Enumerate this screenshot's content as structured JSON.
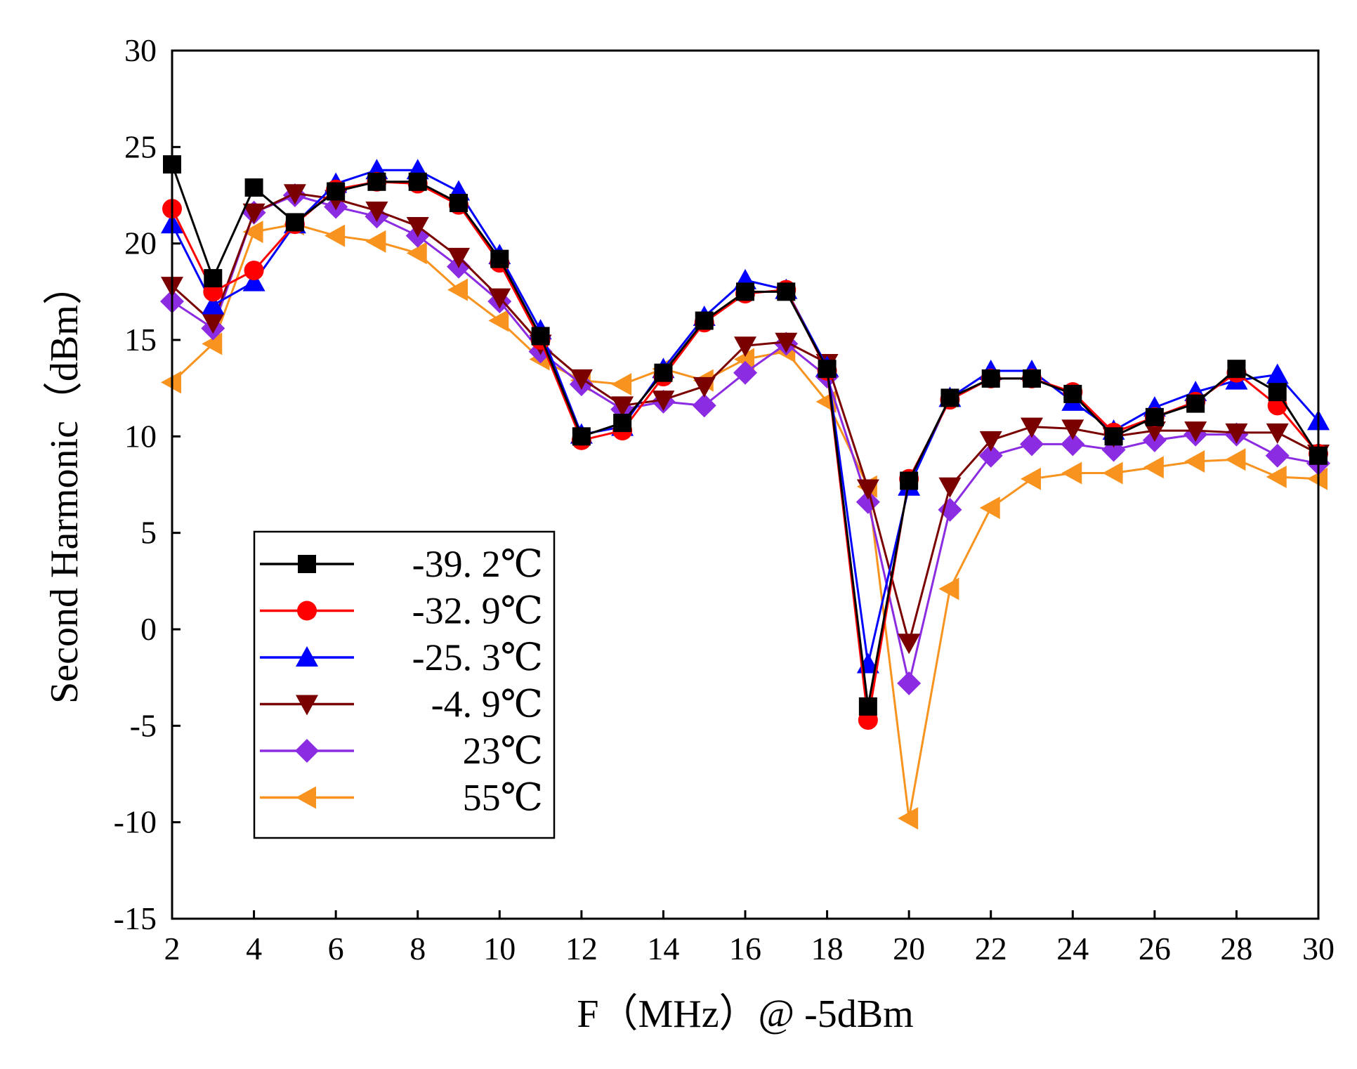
{
  "chart_data": {
    "type": "line",
    "xlabel": "F（MHz）@ -5dBm",
    "ylabel": "Second Harmonic（dBm）",
    "xlim": [
      2,
      30
    ],
    "ylim": [
      -15,
      30
    ],
    "xticks": [
      2,
      4,
      6,
      8,
      10,
      12,
      14,
      16,
      18,
      20,
      22,
      24,
      26,
      28,
      30
    ],
    "yticks": [
      30,
      25,
      20,
      15,
      10,
      5,
      0,
      -5,
      -10,
      -15
    ],
    "grid": false,
    "legend_position": "lower-left",
    "x": [
      2,
      3,
      4,
      5,
      6,
      7,
      8,
      9,
      10,
      11,
      12,
      13,
      14,
      15,
      16,
      17,
      18,
      19,
      20,
      21,
      22,
      23,
      24,
      25,
      26,
      27,
      28,
      29,
      30
    ],
    "series": [
      {
        "name": "-39. 2℃",
        "color": "#000000",
        "marker": "square",
        "values": [
          24.1,
          18.2,
          22.9,
          21.1,
          22.7,
          23.2,
          23.2,
          22.1,
          19.2,
          15.2,
          10.0,
          10.7,
          13.3,
          16.0,
          17.5,
          17.5,
          13.5,
          -4.0,
          7.7,
          12.0,
          13.0,
          13.0,
          12.2,
          10.0,
          11.0,
          11.7,
          13.5,
          12.3,
          9.0
        ]
      },
      {
        "name": "-32. 9℃",
        "color": "#ff0000",
        "marker": "circle",
        "values": [
          21.8,
          17.5,
          18.6,
          21.0,
          22.8,
          23.2,
          23.1,
          22.0,
          19.0,
          15.0,
          9.8,
          10.3,
          13.1,
          15.9,
          17.4,
          17.6,
          13.4,
          -4.7,
          7.8,
          11.9,
          13.0,
          13.0,
          12.3,
          10.2,
          11.0,
          11.8,
          13.3,
          11.6,
          9.1
        ]
      },
      {
        "name": "-25. 3℃",
        "color": "#0000ff",
        "marker": "triangle-up",
        "values": [
          21.0,
          16.8,
          18.0,
          21.0,
          23.1,
          23.8,
          23.8,
          22.7,
          19.4,
          15.5,
          10.1,
          10.5,
          13.5,
          16.2,
          18.1,
          17.6,
          13.6,
          -1.8,
          7.4,
          12.0,
          13.4,
          13.4,
          11.8,
          10.3,
          11.5,
          12.3,
          12.9,
          13.2,
          10.8
        ]
      },
      {
        "name": "-4. 9℃",
        "color": "#7a0000",
        "marker": "triangle-down",
        "values": [
          17.8,
          15.9,
          21.6,
          22.6,
          22.3,
          21.7,
          20.9,
          19.3,
          17.2,
          14.8,
          13.0,
          11.6,
          11.9,
          12.6,
          14.7,
          14.9,
          13.8,
          7.3,
          -0.7,
          7.4,
          9.8,
          10.5,
          10.4,
          10.0,
          10.3,
          10.3,
          10.2,
          10.2,
          9.1
        ]
      },
      {
        "name": "23℃",
        "color": "#8b2be2",
        "marker": "diamond",
        "values": [
          17.0,
          15.6,
          21.6,
          22.5,
          21.9,
          21.4,
          20.4,
          18.8,
          17.0,
          14.4,
          12.7,
          11.4,
          11.8,
          11.6,
          13.3,
          14.8,
          13.1,
          6.6,
          -2.8,
          6.2,
          9.0,
          9.6,
          9.6,
          9.3,
          9.8,
          10.1,
          10.1,
          9.0,
          8.6
        ]
      },
      {
        "name": "55℃",
        "color": "#f7931e",
        "marker": "triangle-left",
        "values": [
          12.8,
          14.8,
          20.6,
          21.0,
          20.4,
          20.1,
          19.5,
          17.6,
          16.0,
          14.0,
          12.9,
          12.7,
          13.5,
          12.9,
          14.0,
          14.4,
          11.8,
          7.4,
          -9.8,
          2.1,
          6.3,
          7.8,
          8.1,
          8.1,
          8.4,
          8.7,
          8.8,
          7.9,
          7.8
        ]
      }
    ]
  }
}
